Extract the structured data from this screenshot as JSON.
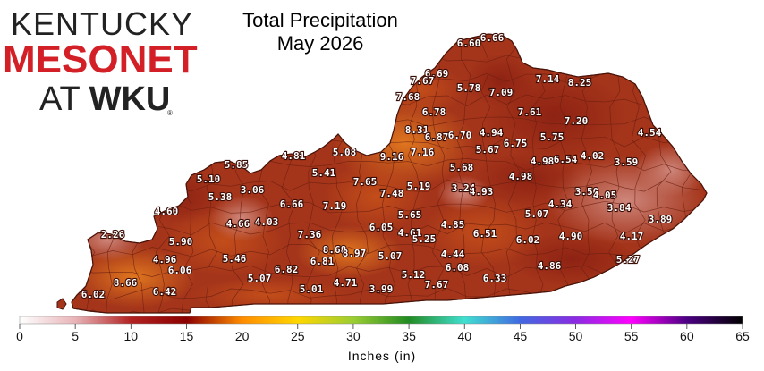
{
  "logo": {
    "line1": "KENTUCKY",
    "line2": "MESONET",
    "line3_a": "AT ",
    "line3_b": "WKU",
    "reg": "®"
  },
  "title": {
    "line1": "Total Precipitation",
    "line2": "May 2026"
  },
  "legend": {
    "label": "Inches (in)",
    "ticks": [
      "0",
      "5",
      "10",
      "15",
      "20",
      "25",
      "30",
      "35",
      "40",
      "45",
      "50",
      "55",
      "60",
      "65"
    ],
    "stops": [
      "#ffffff",
      "#e8b4b8",
      "#b22222",
      "#8b0000",
      "#ff8c00",
      "#ffd700",
      "#9acd32",
      "#228b22",
      "#40e0d0",
      "#4169e1",
      "#8a2be2",
      "#ff00ff",
      "#4b0082",
      "#000000"
    ]
  },
  "colors": {
    "state_fill": "#a4341a",
    "state_fill_light": "#d86a22",
    "state_fill_pink": "#c87870",
    "county_line": "#6b1f10",
    "label_text": "#ffffff"
  },
  "stations": [
    {
      "v": "6.60"
    },
    {
      "v": "6.66"
    },
    {
      "v": "6.69"
    },
    {
      "v": "7.67"
    },
    {
      "v": "7.68"
    },
    {
      "v": "5.78"
    },
    {
      "v": "7.09"
    },
    {
      "v": "7.14"
    },
    {
      "v": "8.25"
    },
    {
      "v": "6.78"
    },
    {
      "v": "7.61"
    },
    {
      "v": "7.20"
    },
    {
      "v": "8.31"
    },
    {
      "v": "6.87"
    },
    {
      "v": "6.70"
    },
    {
      "v": "4.94"
    },
    {
      "v": "6.75"
    },
    {
      "v": "5.75"
    },
    {
      "v": "4.54"
    },
    {
      "v": "4.81"
    },
    {
      "v": "5.08"
    },
    {
      "v": "9.16"
    },
    {
      "v": "7.16"
    },
    {
      "v": "5.67"
    },
    {
      "v": "4.98"
    },
    {
      "v": "6.54"
    },
    {
      "v": "4.02"
    },
    {
      "v": "3.59"
    },
    {
      "v": "5.85"
    },
    {
      "v": "5.41"
    },
    {
      "v": "5.68"
    },
    {
      "v": "4.98"
    },
    {
      "v": "5.10"
    },
    {
      "v": "7.65"
    },
    {
      "v": "7.48"
    },
    {
      "v": "5.19"
    },
    {
      "v": "3.24"
    },
    {
      "v": "4.93"
    },
    {
      "v": "3.50"
    },
    {
      "v": "4.05"
    },
    {
      "v": "5.38"
    },
    {
      "v": "3.06"
    },
    {
      "v": "6.66"
    },
    {
      "v": "7.19"
    },
    {
      "v": "4.34"
    },
    {
      "v": "3.84"
    },
    {
      "v": "4.60"
    },
    {
      "v": "5.07"
    },
    {
      "v": "3.89"
    },
    {
      "v": "4.66"
    },
    {
      "v": "4.03"
    },
    {
      "v": "5.65"
    },
    {
      "v": "6.05"
    },
    {
      "v": "4.61"
    },
    {
      "v": "4.85"
    },
    {
      "v": "2.26"
    },
    {
      "v": "7.36"
    },
    {
      "v": "6.51"
    },
    {
      "v": "4.90"
    },
    {
      "v": "4.17"
    },
    {
      "v": "5.90"
    },
    {
      "v": "5.25"
    },
    {
      "v": "6.02"
    },
    {
      "v": "8.68"
    },
    {
      "v": "8.97"
    },
    {
      "v": "4.96"
    },
    {
      "v": "5.46"
    },
    {
      "v": "6.81"
    },
    {
      "v": "5.07"
    },
    {
      "v": "4.44"
    },
    {
      "v": "5.27"
    },
    {
      "v": "6.06"
    },
    {
      "v": "6.82"
    },
    {
      "v": "6.08"
    },
    {
      "v": "4.86"
    },
    {
      "v": "8.66"
    },
    {
      "v": "5.07"
    },
    {
      "v": "5.12"
    },
    {
      "v": "6.33"
    },
    {
      "v": "6.02"
    },
    {
      "v": "6.42"
    },
    {
      "v": "5.01"
    },
    {
      "v": "4.71"
    },
    {
      "v": "3.99"
    },
    {
      "v": "7.67"
    }
  ]
}
